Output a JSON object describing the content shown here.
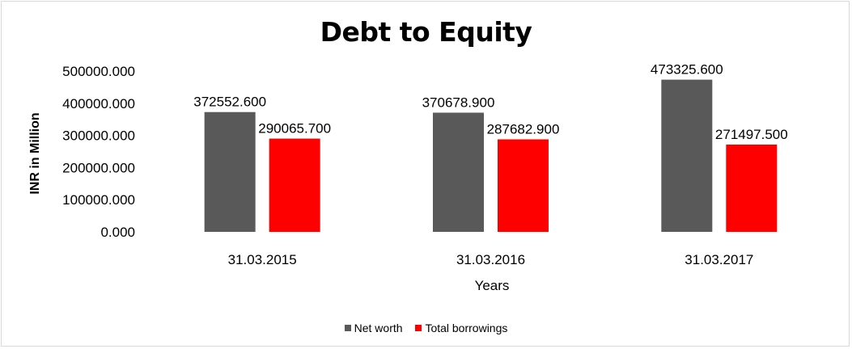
{
  "chart_data": {
    "type": "bar",
    "title": "Debt to Equity",
    "xlabel": "Years",
    "ylabel": "INR in Million",
    "categories": [
      "31.03.2015",
      "31.03.2016",
      "31.03.2017"
    ],
    "series": [
      {
        "name": "Net worth",
        "color": "#595959",
        "values": [
          372552.6,
          370678.9,
          473325.6
        ],
        "labels": [
          "372552.600",
          "370678.900",
          "473325.600"
        ]
      },
      {
        "name": "Total borrowings",
        "color": "#ff0000",
        "values": [
          290065.7,
          287682.9,
          271497.5
        ],
        "labels": [
          "290065.700",
          "287682.900",
          "271497.500"
        ]
      }
    ],
    "ylim": [
      0,
      500000
    ],
    "yticks": [
      "0.000",
      "100000.000",
      "200000.000",
      "300000.000",
      "400000.000",
      "500000.000"
    ],
    "grid": false,
    "legend": "bottom"
  }
}
